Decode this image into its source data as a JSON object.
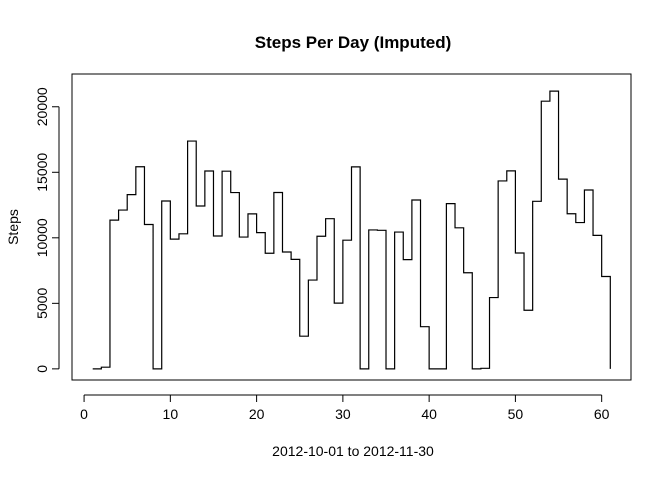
{
  "chart_data": {
    "type": "line",
    "style": "step",
    "title": "Steps Per Day (Imputed)",
    "xlabel": "2012-10-01  to  2012-11-30",
    "ylabel": "Steps",
    "xlim": [
      -1.4,
      63.4
    ],
    "ylim": [
      -850,
      22500
    ],
    "x_ticks": [
      0,
      10,
      20,
      30,
      40,
      50,
      60
    ],
    "y_ticks": [
      0,
      5000,
      10000,
      15000,
      20000
    ],
    "grid": false,
    "x": [
      1,
      2,
      3,
      4,
      5,
      6,
      7,
      8,
      9,
      10,
      11,
      12,
      13,
      14,
      15,
      16,
      17,
      18,
      19,
      20,
      21,
      22,
      23,
      24,
      25,
      26,
      27,
      28,
      29,
      30,
      31,
      32,
      33,
      34,
      35,
      36,
      37,
      38,
      39,
      40,
      41,
      42,
      43,
      44,
      45,
      46,
      47,
      48,
      49,
      50,
      51,
      52,
      53,
      54,
      55,
      56,
      57,
      58,
      59,
      60,
      61
    ],
    "y": [
      0,
      126,
      11352,
      12116,
      13294,
      15420,
      11015,
      0,
      12811,
      9900,
      10304,
      17382,
      12426,
      15098,
      10139,
      15084,
      13452,
      10056,
      11829,
      10395,
      8821,
      13460,
      8918,
      8355,
      2492,
      6778,
      10119,
      11458,
      5018,
      9819,
      15414,
      0,
      10600,
      10571,
      0,
      10439,
      8334,
      12883,
      3219,
      0,
      0,
      12608,
      10765,
      7336,
      0,
      41,
      5441,
      14339,
      15110,
      8841,
      4472,
      12787,
      20427,
      21194,
      14478,
      11834,
      11162,
      13646,
      10183,
      7047,
      0
    ]
  }
}
